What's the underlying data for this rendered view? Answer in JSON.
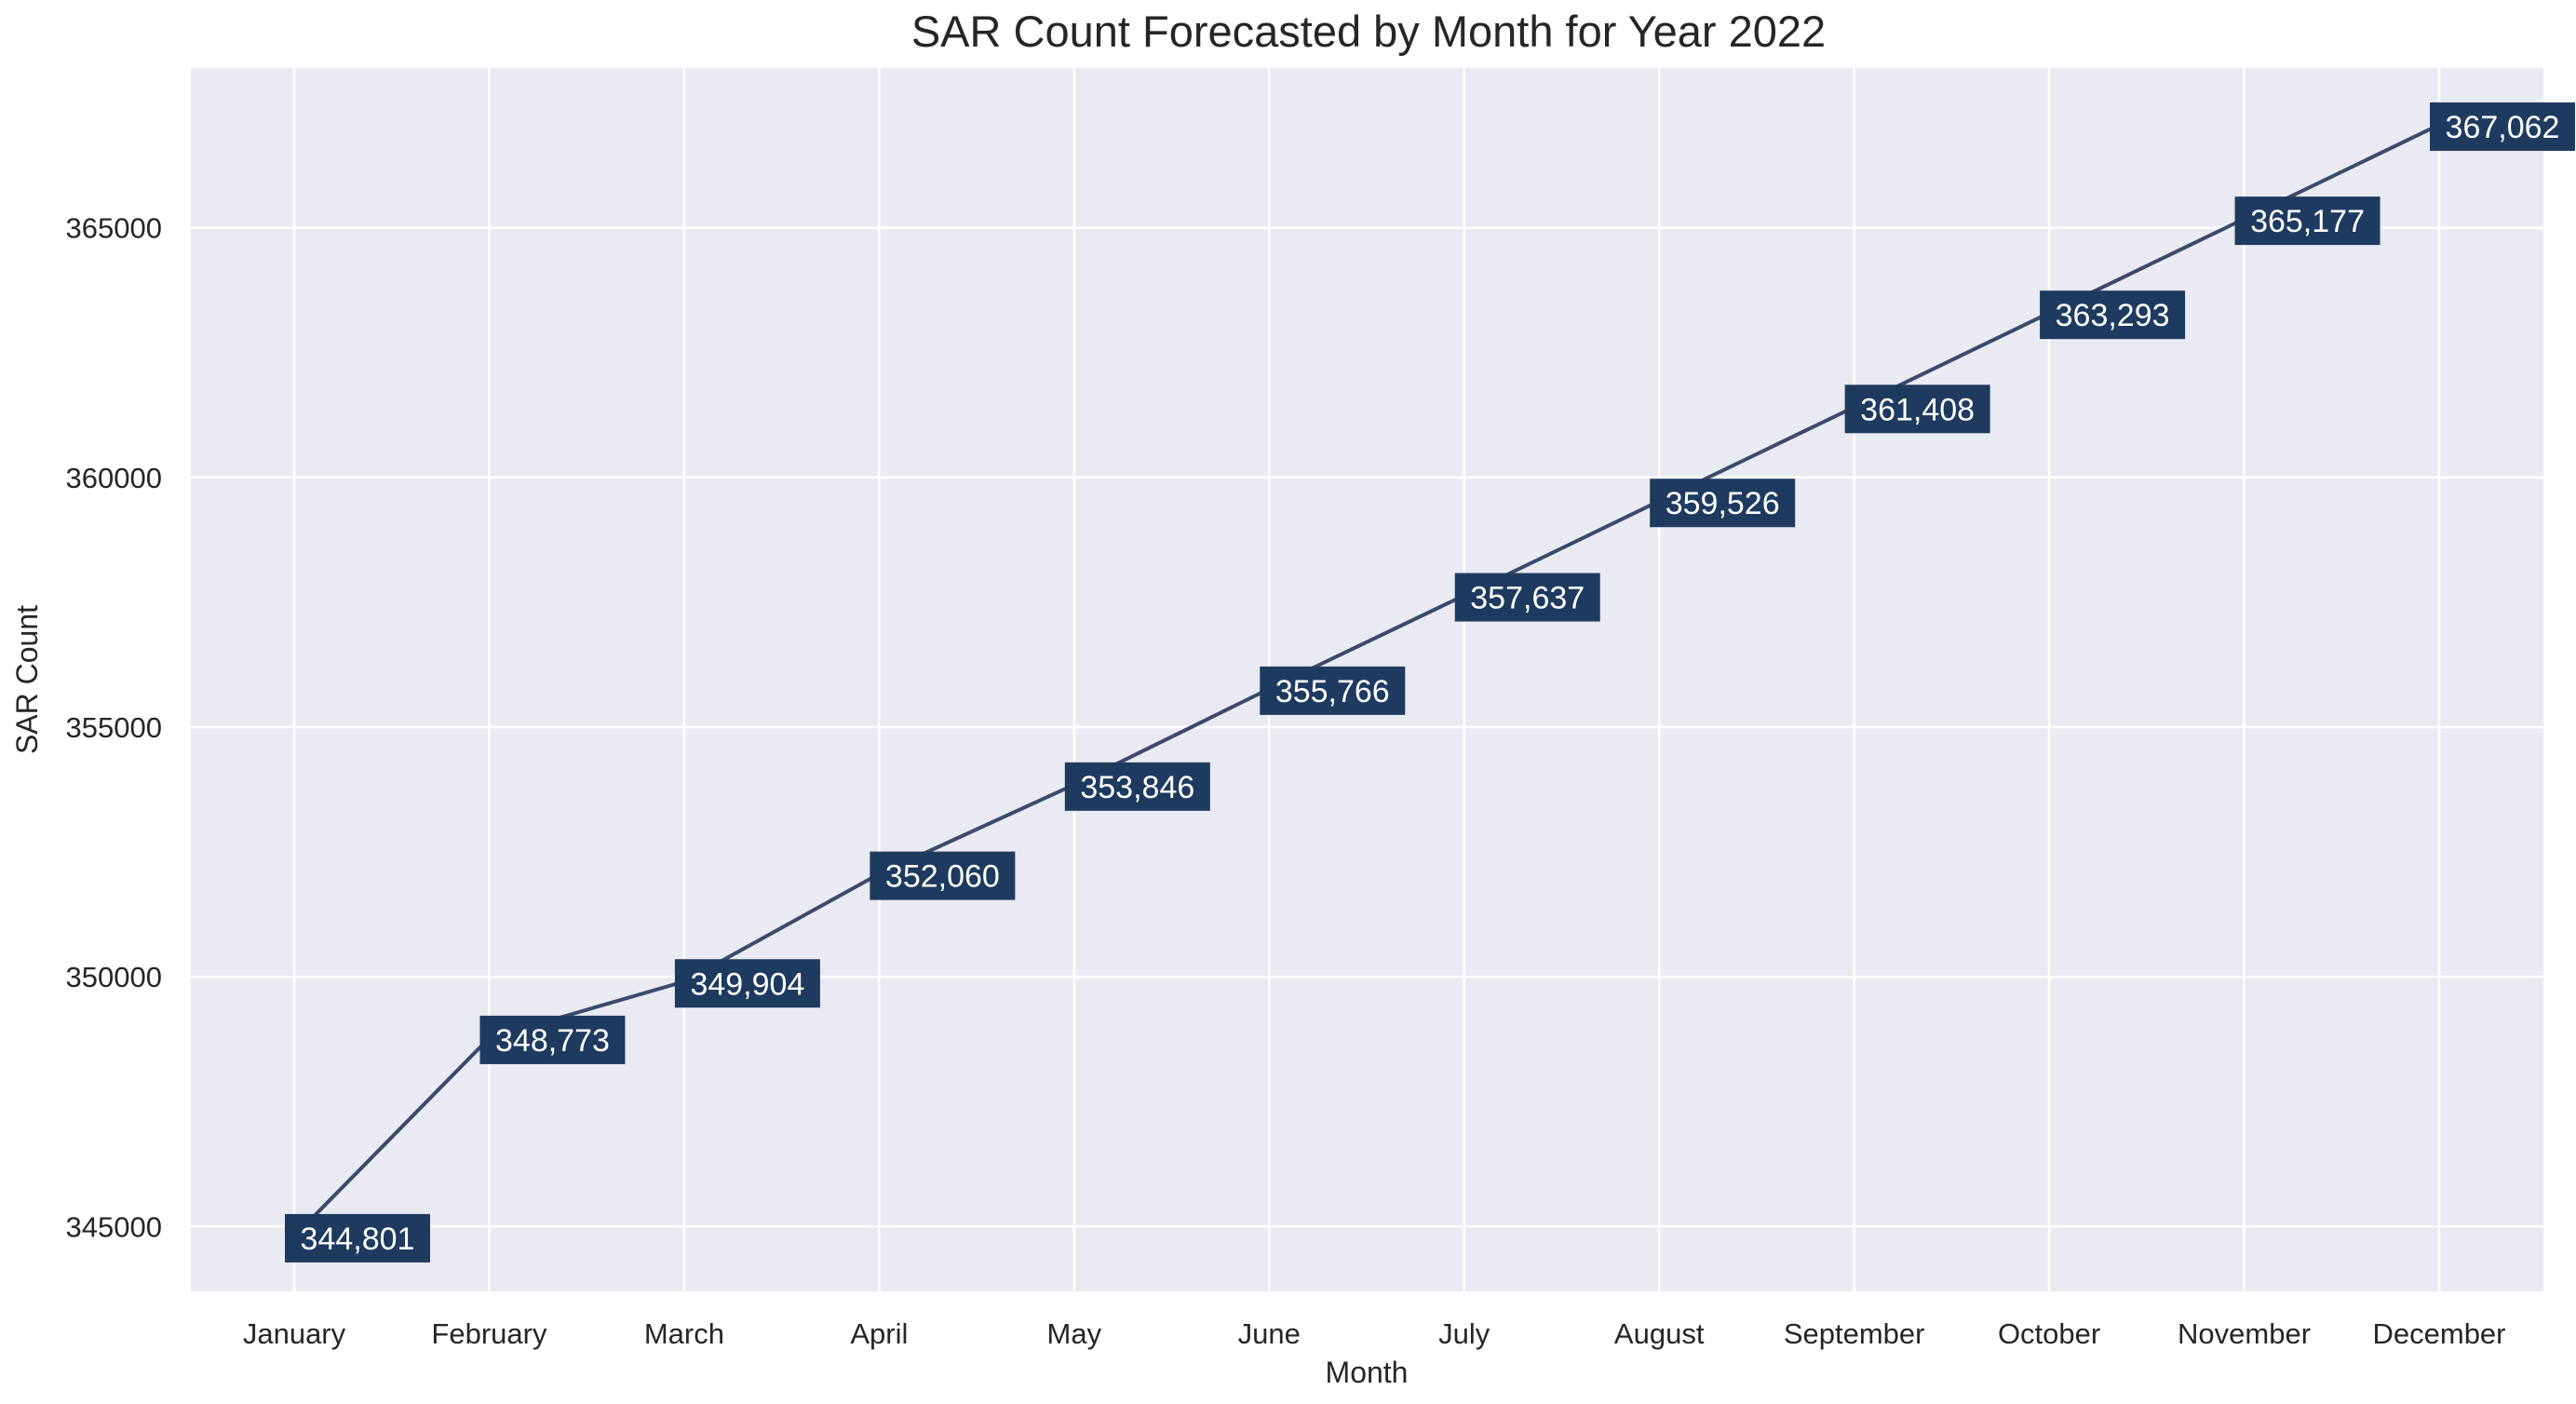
{
  "chart_data": {
    "type": "line",
    "title": "SAR Count Forecasted by Month for Year 2022",
    "xlabel": "Month",
    "ylabel": "SAR Count",
    "categories": [
      "January",
      "February",
      "March",
      "April",
      "May",
      "June",
      "July",
      "August",
      "September",
      "October",
      "November",
      "December"
    ],
    "values": [
      344801,
      348773,
      349904,
      352060,
      353846,
      355766,
      357637,
      359526,
      361408,
      363293,
      365177,
      367062
    ],
    "data_labels": [
      "344,801",
      "348,773",
      "349,904",
      "352,060",
      "353,846",
      "355,766",
      "357,637",
      "359,526",
      "361,408",
      "363,293",
      "365,177",
      "367,062"
    ],
    "yticks": [
      345000,
      350000,
      355000,
      360000,
      365000
    ],
    "ytick_labels": [
      "345000",
      "350000",
      "355000",
      "360000",
      "365000"
    ],
    "ylim": [
      343700,
      368200
    ],
    "grid": true,
    "legend": false,
    "colors": {
      "plot_background": "#EAEAF2",
      "grid": "#FFFFFF",
      "line": "#3B4A6B",
      "label_box": "#1F3A5F",
      "label_text": "#FFFFFF",
      "text": "#262626"
    }
  }
}
